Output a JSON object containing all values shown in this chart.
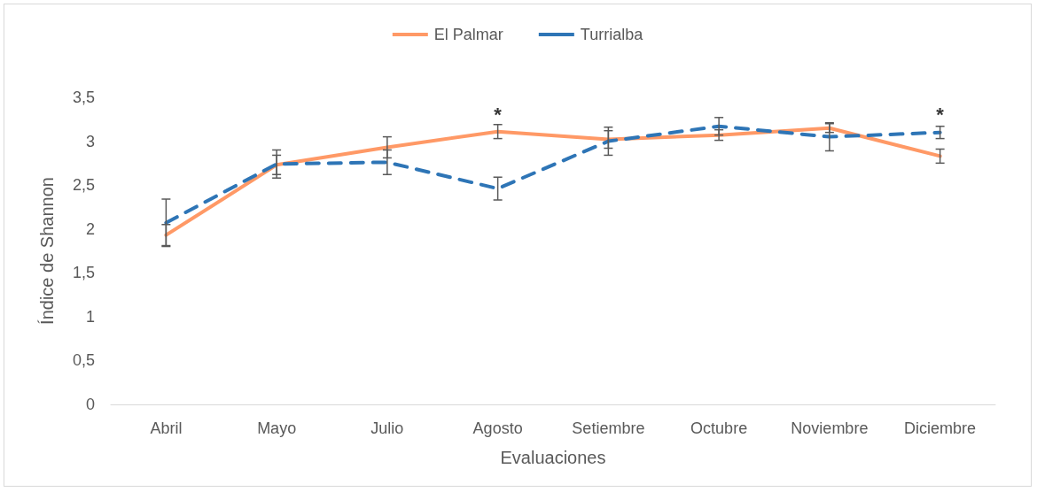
{
  "chart_data": {
    "type": "line",
    "xlabel": "Evaluaciones",
    "ylabel": "Índice de Shannon",
    "categories": [
      "Abril",
      "Mayo",
      "Julio",
      "Agosto",
      "Setiembre",
      "Octubre",
      "Noviembre",
      "Diciembre"
    ],
    "series": [
      {
        "name": "El Palmar",
        "color": "#ff9966",
        "line_style": "solid",
        "values": [
          1.93,
          2.73,
          2.93,
          3.11,
          3.02,
          3.07,
          3.15,
          2.83
        ],
        "errors": [
          0.12,
          0.11,
          0.12,
          0.08,
          0.1,
          0.06,
          0.05,
          0.08
        ]
      },
      {
        "name": "Turrialba",
        "color": "#2e75b6",
        "line_style": "dashed",
        "values": [
          2.07,
          2.74,
          2.76,
          2.46,
          3.0,
          3.17,
          3.05,
          3.1
        ],
        "errors": [
          0.27,
          0.16,
          0.14,
          0.13,
          0.16,
          0.1,
          0.16,
          0.07
        ]
      }
    ],
    "ylim": [
      0,
      3.5
    ],
    "yticks": [
      0,
      {
        "value": 0.5,
        "label": "0,5"
      },
      1,
      {
        "value": 1.5,
        "label": "1,5"
      },
      2,
      {
        "value": 2.5,
        "label": "2,5"
      },
      3,
      {
        "value": 3.5,
        "label": "3,5"
      }
    ],
    "grid": false,
    "legend": "top",
    "marker": "none",
    "annotations": [
      "*",
      "*"
    ]
  }
}
